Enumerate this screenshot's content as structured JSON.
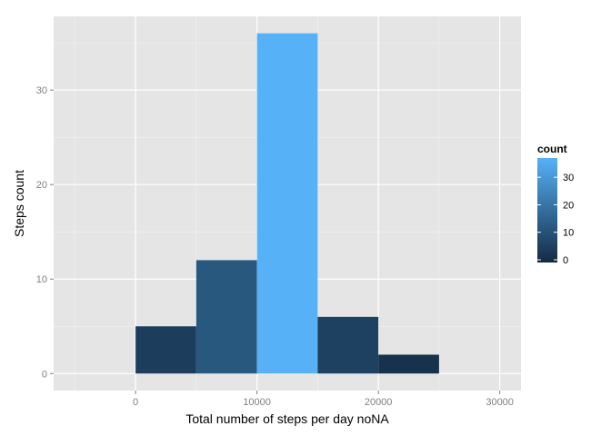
{
  "chart_data": {
    "type": "bar",
    "title": "",
    "xlabel": "Total number of steps per day noNA",
    "ylabel": "Steps count",
    "x_ticks": [
      0,
      10000,
      20000,
      30000
    ],
    "y_ticks": [
      0,
      10,
      20,
      30
    ],
    "xlim": [
      -6750,
      31750
    ],
    "ylim": [
      -1.8,
      37.8
    ],
    "bins": [
      {
        "x_start": 0,
        "x_end": 5000,
        "count": 5
      },
      {
        "x_start": 5000,
        "x_end": 10000,
        "count": 12
      },
      {
        "x_start": 10000,
        "x_end": 15000,
        "count": 36
      },
      {
        "x_start": 15000,
        "x_end": 20000,
        "count": 6
      },
      {
        "x_start": 20000,
        "x_end": 25000,
        "count": 2
      }
    ],
    "grid": true,
    "legend": {
      "title": "count",
      "position": "right",
      "ticks": [
        0,
        10,
        20,
        30
      ],
      "range": [
        0,
        36
      ],
      "color_low": "#132b43",
      "color_high": "#56b1f7"
    },
    "colors": {
      "panel_background": "#e5e5e5",
      "grid_major": "#ffffff",
      "grid_minor": "#f2f2f2"
    }
  }
}
